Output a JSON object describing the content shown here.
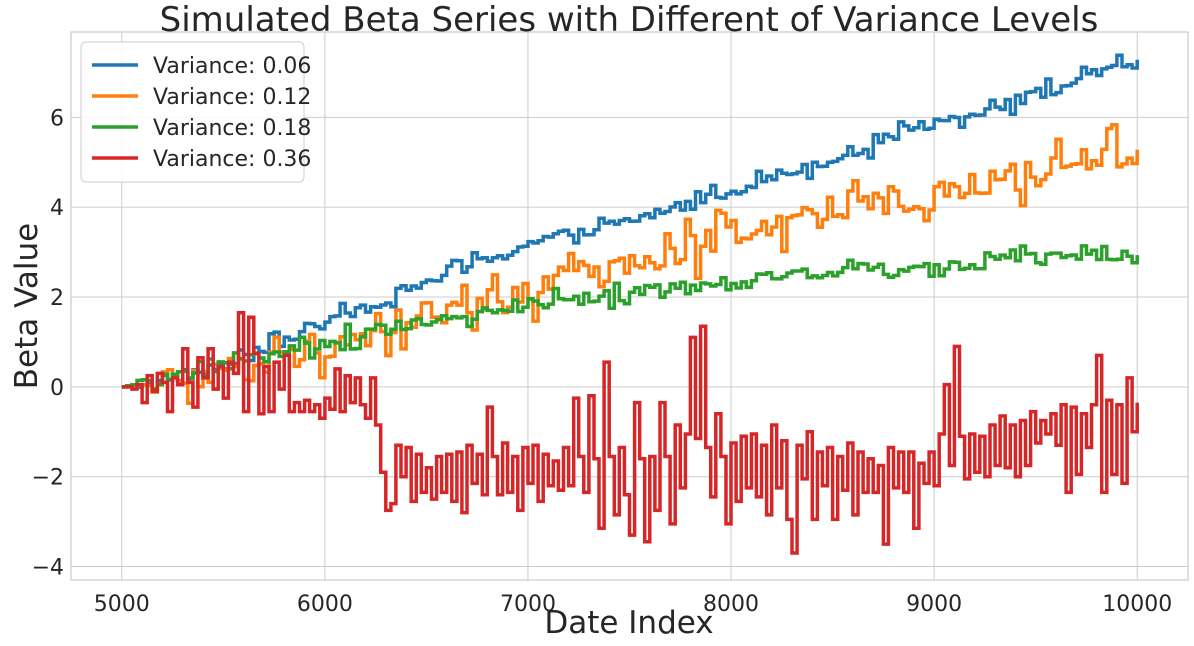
{
  "chart_data": {
    "type": "line",
    "title": "Simulated Beta Series with Different of Variance Levels",
    "xlabel": "Date Index",
    "ylabel": "Beta Value",
    "xlim": [
      4750,
      10250
    ],
    "ylim": [
      -4.3,
      7.9
    ],
    "xticks": [
      5000,
      6000,
      7000,
      8000,
      9000,
      10000
    ],
    "yticks": [
      -4,
      -2,
      0,
      2,
      4,
      6
    ],
    "grid": true,
    "legend_position": "top-left",
    "step_interval": 25,
    "series": [
      {
        "name": "Variance: 0.06",
        "color": "#1f77b4",
        "waypoints": [
          [
            5000,
            0
          ],
          [
            5500,
            0.45
          ],
          [
            6000,
            1.45
          ],
          [
            6500,
            2.35
          ],
          [
            7000,
            3.2
          ],
          [
            7500,
            3.7
          ],
          [
            8000,
            4.4
          ],
          [
            8500,
            5.1
          ],
          [
            9000,
            5.9
          ],
          [
            9500,
            6.5
          ],
          [
            10000,
            7.3
          ]
        ],
        "noise_amplitude": 0.13
      },
      {
        "name": "Variance: 0.12",
        "color": "#ff7f0e",
        "waypoints": [
          [
            5000,
            0
          ],
          [
            5500,
            0.3
          ],
          [
            6000,
            0.95
          ],
          [
            6500,
            1.65
          ],
          [
            7000,
            2.1
          ],
          [
            7500,
            2.6
          ],
          [
            8000,
            3.4
          ],
          [
            8500,
            4.05
          ],
          [
            9000,
            4.3
          ],
          [
            9500,
            4.8
          ],
          [
            10000,
            5.25
          ]
        ],
        "noise_amplitude": 0.33
      },
      {
        "name": "Variance: 0.18",
        "color": "#2ca02c",
        "waypoints": [
          [
            5000,
            0
          ],
          [
            5500,
            0.45
          ],
          [
            6000,
            1.0
          ],
          [
            6500,
            1.5
          ],
          [
            7000,
            1.85
          ],
          [
            7500,
            2.1
          ],
          [
            8000,
            2.3
          ],
          [
            8500,
            2.6
          ],
          [
            9000,
            2.65
          ],
          [
            9500,
            2.9
          ],
          [
            10000,
            2.9
          ]
        ],
        "noise_amplitude": 0.14
      },
      {
        "name": "Variance: 0.36",
        "color": "#d62728",
        "points": [
          [
            5000,
            0
          ],
          [
            5025,
            0
          ],
          [
            5050,
            -0.05
          ],
          [
            5075,
            0.05
          ],
          [
            5100,
            -0.35
          ],
          [
            5125,
            0.25
          ],
          [
            5150,
            -0.1
          ],
          [
            5175,
            0.3
          ],
          [
            5200,
            0.1
          ],
          [
            5225,
            -0.55
          ],
          [
            5250,
            0.2
          ],
          [
            5275,
            0.05
          ],
          [
            5300,
            0.85
          ],
          [
            5325,
            0.1
          ],
          [
            5350,
            -0.45
          ],
          [
            5375,
            0.65
          ],
          [
            5400,
            0.2
          ],
          [
            5425,
            0.85
          ],
          [
            5450,
            -0.05
          ],
          [
            5475,
            0.45
          ],
          [
            5500,
            -0.25
          ],
          [
            5525,
            0.55
          ],
          [
            5550,
            0.3
          ],
          [
            5575,
            1.65
          ],
          [
            5600,
            -0.55
          ],
          [
            5625,
            1.55
          ],
          [
            5650,
            0.75
          ],
          [
            5675,
            -0.6
          ],
          [
            5700,
            0.45
          ],
          [
            5725,
            -0.55
          ],
          [
            5750,
            0.55
          ],
          [
            5775,
            -0.05
          ],
          [
            5800,
            0.7
          ],
          [
            5825,
            -0.55
          ],
          [
            5850,
            -0.35
          ],
          [
            5875,
            -0.55
          ],
          [
            5900,
            -0.3
          ],
          [
            5925,
            -0.55
          ],
          [
            5950,
            -0.4
          ],
          [
            5975,
            -0.7
          ],
          [
            6000,
            -0.25
          ],
          [
            6025,
            -0.5
          ],
          [
            6050,
            0.4
          ],
          [
            6075,
            -0.55
          ],
          [
            6100,
            0.25
          ],
          [
            6125,
            -0.35
          ],
          [
            6150,
            0.2
          ],
          [
            6175,
            -0.4
          ],
          [
            6200,
            -0.7
          ],
          [
            6225,
            0.2
          ],
          [
            6250,
            -0.85
          ],
          [
            6275,
            -1.9
          ],
          [
            6300,
            -2.75
          ],
          [
            6325,
            -2.6
          ],
          [
            6350,
            -1.3
          ],
          [
            6375,
            -2.0
          ],
          [
            6400,
            -1.35
          ],
          [
            6425,
            -2.55
          ],
          [
            6450,
            -1.5
          ],
          [
            6475,
            -2.35
          ],
          [
            6500,
            -1.8
          ],
          [
            6525,
            -2.5
          ],
          [
            6550,
            -1.55
          ],
          [
            6575,
            -2.35
          ],
          [
            6600,
            -1.5
          ],
          [
            6625,
            -2.55
          ],
          [
            6650,
            -1.45
          ],
          [
            6675,
            -2.8
          ],
          [
            6700,
            -1.3
          ],
          [
            6725,
            -2.15
          ],
          [
            6750,
            -1.5
          ],
          [
            6775,
            -2.4
          ],
          [
            6800,
            -0.45
          ],
          [
            6825,
            -1.55
          ],
          [
            6850,
            -2.4
          ],
          [
            6875,
            -1.25
          ],
          [
            6900,
            -2.35
          ],
          [
            6925,
            -1.55
          ],
          [
            6950,
            -2.75
          ],
          [
            6975,
            -1.35
          ],
          [
            7000,
            -2.15
          ],
          [
            7025,
            -1.3
          ],
          [
            7050,
            -2.55
          ],
          [
            7075,
            -1.5
          ],
          [
            7100,
            -2.2
          ],
          [
            7125,
            -1.65
          ],
          [
            7150,
            -2.3
          ],
          [
            7175,
            -1.35
          ],
          [
            7200,
            -2.2
          ],
          [
            7225,
            -0.25
          ],
          [
            7250,
            -1.55
          ],
          [
            7275,
            -2.35
          ],
          [
            7300,
            -0.2
          ],
          [
            7325,
            -1.6
          ],
          [
            7350,
            -3.15
          ],
          [
            7375,
            0.55
          ],
          [
            7400,
            -1.55
          ],
          [
            7425,
            -2.85
          ],
          [
            7450,
            -1.35
          ],
          [
            7475,
            -2.4
          ],
          [
            7500,
            -3.3
          ],
          [
            7525,
            -0.35
          ],
          [
            7550,
            -1.6
          ],
          [
            7575,
            -3.45
          ],
          [
            7600,
            -1.55
          ],
          [
            7625,
            -2.75
          ],
          [
            7650,
            -0.35
          ],
          [
            7675,
            -1.55
          ],
          [
            7700,
            -3.05
          ],
          [
            7725,
            -0.85
          ],
          [
            7750,
            -2.25
          ],
          [
            7775,
            -1.05
          ],
          [
            7800,
            1.1
          ],
          [
            7825,
            -1.15
          ],
          [
            7850,
            1.35
          ],
          [
            7875,
            -1.35
          ],
          [
            7900,
            -2.45
          ],
          [
            7925,
            -0.6
          ],
          [
            7950,
            -1.55
          ],
          [
            7975,
            -3.05
          ],
          [
            8000,
            -1.25
          ],
          [
            8025,
            -2.55
          ],
          [
            8050,
            -1.1
          ],
          [
            8075,
            -2.25
          ],
          [
            8100,
            -1.05
          ],
          [
            8125,
            -2.45
          ],
          [
            8150,
            -1.3
          ],
          [
            8175,
            -2.85
          ],
          [
            8200,
            -0.85
          ],
          [
            8225,
            -2.25
          ],
          [
            8250,
            -1.2
          ],
          [
            8275,
            -2.95
          ],
          [
            8300,
            -3.7
          ],
          [
            8325,
            -1.3
          ],
          [
            8350,
            -2.05
          ],
          [
            8375,
            -1.0
          ],
          [
            8400,
            -2.95
          ],
          [
            8425,
            -1.45
          ],
          [
            8450,
            -2.2
          ],
          [
            8475,
            -1.35
          ],
          [
            8500,
            -2.95
          ],
          [
            8525,
            -1.55
          ],
          [
            8550,
            -2.3
          ],
          [
            8575,
            -1.25
          ],
          [
            8600,
            -2.85
          ],
          [
            8625,
            -1.45
          ],
          [
            8650,
            -2.35
          ],
          [
            8675,
            -1.6
          ],
          [
            8700,
            -2.35
          ],
          [
            8725,
            -1.75
          ],
          [
            8750,
            -3.5
          ],
          [
            8775,
            -1.35
          ],
          [
            8800,
            -2.25
          ],
          [
            8825,
            -1.45
          ],
          [
            8850,
            -2.35
          ],
          [
            8875,
            -1.45
          ],
          [
            8900,
            -3.15
          ],
          [
            8925,
            -1.7
          ],
          [
            8950,
            -2.15
          ],
          [
            8975,
            -1.45
          ],
          [
            9000,
            -2.2
          ],
          [
            9025,
            -1.05
          ],
          [
            9050,
            0.05
          ],
          [
            9075,
            -1.75
          ],
          [
            9100,
            0.9
          ],
          [
            9125,
            -1.1
          ],
          [
            9150,
            -2.05
          ],
          [
            9175,
            -1.05
          ],
          [
            9200,
            -1.9
          ],
          [
            9225,
            -1.1
          ],
          [
            9250,
            -2.0
          ],
          [
            9275,
            -0.85
          ],
          [
            9300,
            -1.75
          ],
          [
            9325,
            -0.65
          ],
          [
            9350,
            -1.8
          ],
          [
            9375,
            -0.85
          ],
          [
            9400,
            -2.0
          ],
          [
            9425,
            -0.75
          ],
          [
            9450,
            -1.75
          ],
          [
            9475,
            -0.55
          ],
          [
            9500,
            -1.25
          ],
          [
            9525,
            -0.75
          ],
          [
            9550,
            -1.05
          ],
          [
            9575,
            -0.6
          ],
          [
            9600,
            -1.3
          ],
          [
            9625,
            -0.4
          ],
          [
            9650,
            -2.35
          ],
          [
            9675,
            -0.45
          ],
          [
            9700,
            -1.95
          ],
          [
            9725,
            -0.6
          ],
          [
            9750,
            -1.35
          ],
          [
            9775,
            -0.4
          ],
          [
            9800,
            0.7
          ],
          [
            9825,
            -2.35
          ],
          [
            9850,
            -0.3
          ],
          [
            9875,
            -1.95
          ],
          [
            9900,
            -0.4
          ],
          [
            9925,
            -2.15
          ],
          [
            9950,
            0.2
          ],
          [
            9975,
            -1.0
          ],
          [
            10000,
            -0.35
          ]
        ]
      }
    ]
  }
}
